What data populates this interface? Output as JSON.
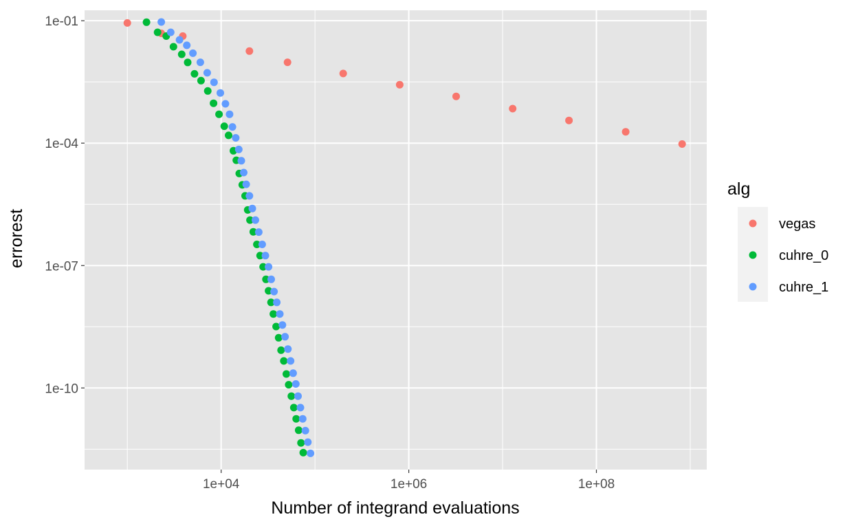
{
  "chart_data": {
    "type": "scatter",
    "xlabel": "Number of integrand evaluations",
    "ylabel": "errorest",
    "x_scale": "log10",
    "y_scale": "log10",
    "xlim": [
      350,
      1500000000
    ],
    "ylim": [
      1e-12,
      0.18
    ],
    "x_ticks": [
      {
        "value": 10000,
        "label": "1e+04"
      },
      {
        "value": 1000000,
        "label": "1e+06"
      },
      {
        "value": 100000000,
        "label": "1e+08"
      }
    ],
    "y_ticks": [
      {
        "value": 0.1,
        "label": "1e-01"
      },
      {
        "value": 0.0001,
        "label": "1e-04"
      },
      {
        "value": 1e-07,
        "label": "1e-07"
      },
      {
        "value": 1e-10,
        "label": "1e-10"
      }
    ],
    "grid": true,
    "background": "#e5e5e5",
    "legend": {
      "title": "alg",
      "position": "right"
    },
    "series": [
      {
        "name": "vegas",
        "color": "#f8766d",
        "points": [
          [
            1000,
            0.088
          ],
          [
            2300,
            0.049
          ],
          [
            3900,
            0.042
          ],
          [
            20000,
            0.018
          ],
          [
            51000,
            0.0096
          ],
          [
            200000,
            0.0051
          ],
          [
            800000,
            0.0027
          ],
          [
            3200000,
            0.0014
          ],
          [
            12800000,
            0.0007
          ],
          [
            51000000,
            0.00036
          ],
          [
            205000000,
            0.00019
          ],
          [
            820000000,
            9.5e-05
          ]
        ]
      },
      {
        "name": "cuhre_0",
        "color": "#00ba38",
        "points": [
          [
            1600,
            0.092
          ],
          [
            2100,
            0.052
          ],
          [
            2600,
            0.042
          ],
          [
            3100,
            0.023
          ],
          [
            3800,
            0.015
          ],
          [
            4400,
            0.0095
          ],
          [
            5200,
            0.005
          ],
          [
            6100,
            0.0034
          ],
          [
            7200,
            0.0019
          ],
          [
            8300,
            0.00095
          ],
          [
            9500,
            0.00051
          ],
          [
            10800,
            0.00026
          ],
          [
            12000,
            0.000155
          ],
          [
            13500,
            6.5e-05
          ],
          [
            14500,
            3.8e-05
          ],
          [
            15600,
            1.8e-05
          ],
          [
            16800,
            9.5e-06
          ],
          [
            18000,
            5.1e-06
          ],
          [
            19200,
            2.3e-06
          ],
          [
            20300,
            1.3e-06
          ],
          [
            22000,
            6.7e-07
          ],
          [
            24000,
            3.3e-07
          ],
          [
            26000,
            1.75e-07
          ],
          [
            28000,
            9.3e-08
          ],
          [
            30000,
            4.6e-08
          ],
          [
            32000,
            2.4e-08
          ],
          [
            34000,
            1.25e-08
          ],
          [
            36000,
            6.5e-09
          ],
          [
            38500,
            3.2e-09
          ],
          [
            41000,
            1.7e-09
          ],
          [
            43500,
            8.4e-10
          ],
          [
            46500,
            4.6e-10
          ],
          [
            49500,
            2.2e-10
          ],
          [
            52500,
            1.2e-10
          ],
          [
            56000,
            6.3e-11
          ],
          [
            59500,
            3.3e-11
          ],
          [
            63000,
            1.75e-11
          ],
          [
            67000,
            9.2e-12
          ],
          [
            71000,
            4.5e-12
          ],
          [
            75000,
            2.6e-12
          ]
        ]
      },
      {
        "name": "cuhre_1",
        "color": "#619cff",
        "points": [
          [
            2300,
            0.093
          ],
          [
            2900,
            0.052
          ],
          [
            3600,
            0.034
          ],
          [
            4300,
            0.025
          ],
          [
            5000,
            0.016
          ],
          [
            6000,
            0.0096
          ],
          [
            7100,
            0.0053
          ],
          [
            8400,
            0.0031
          ],
          [
            9800,
            0.0017
          ],
          [
            11100,
            0.00092
          ],
          [
            12300,
            0.00051
          ],
          [
            13200,
            0.00025
          ],
          [
            14300,
            0.000135
          ],
          [
            15400,
            7e-05
          ],
          [
            16400,
            3.7e-05
          ],
          [
            17400,
            1.9e-05
          ],
          [
            18500,
            9.8e-06
          ],
          [
            20000,
            5.1e-06
          ],
          [
            21500,
            2.5e-06
          ],
          [
            23200,
            1.3e-06
          ],
          [
            25200,
            6.6e-07
          ],
          [
            27400,
            3.3e-07
          ],
          [
            29600,
            1.75e-07
          ],
          [
            32000,
            9.3e-08
          ],
          [
            34200,
            4.6e-08
          ],
          [
            36600,
            2.3e-08
          ],
          [
            39200,
            1.25e-08
          ],
          [
            42200,
            6.5e-09
          ],
          [
            45000,
            3.5e-09
          ],
          [
            48000,
            1.8e-09
          ],
          [
            51500,
            9e-10
          ],
          [
            55000,
            4.6e-10
          ],
          [
            58500,
            2.3e-10
          ],
          [
            62500,
            1.25e-10
          ],
          [
            66000,
            6.3e-11
          ],
          [
            70000,
            3.3e-11
          ],
          [
            74000,
            1.75e-11
          ],
          [
            79000,
            9e-12
          ],
          [
            84000,
            4.7e-12
          ],
          [
            89500,
            2.5e-12
          ]
        ]
      }
    ]
  }
}
